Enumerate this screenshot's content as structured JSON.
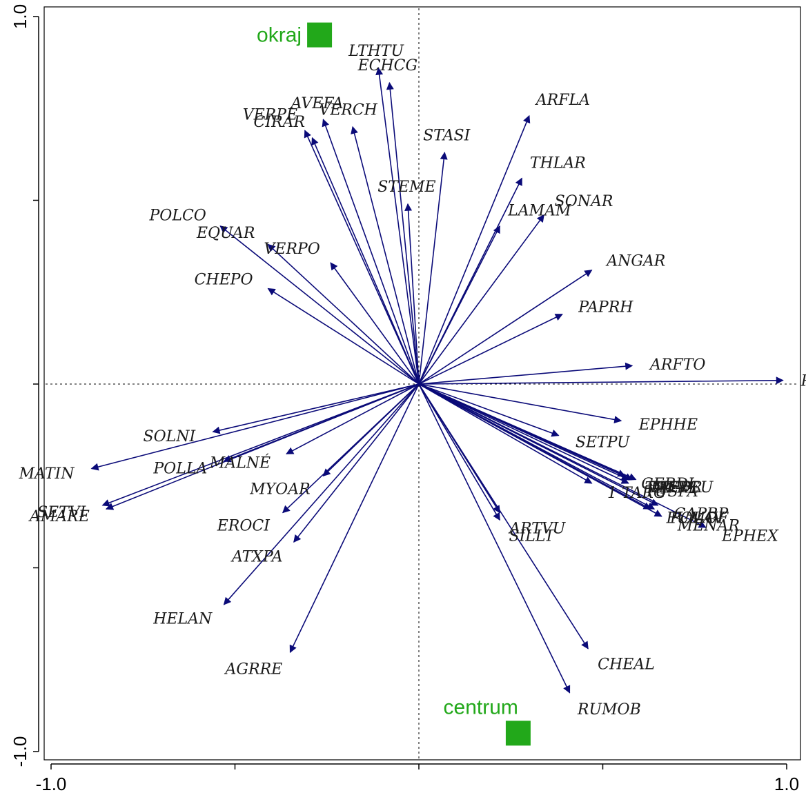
{
  "chart_data": {
    "type": "scatter",
    "subtype": "biplot",
    "xlim": [
      -1.0,
      1.0
    ],
    "ylim": [
      -1.0,
      1.0
    ],
    "xticks": [
      -1.0,
      -0.5,
      0.0,
      0.5,
      1.0
    ],
    "yticks": [
      -1.0,
      -0.5,
      0.0,
      0.5,
      1.0
    ],
    "xtick_labels": [
      "-1.0",
      "",
      "",
      "",
      "1.0"
    ],
    "ytick_labels": [
      "-1.0",
      "",
      "",
      "",
      "1.0"
    ],
    "reference_lines": "dashed at x=0 and y=0",
    "arrow_color": "#0a0a78",
    "sample_color": "#22a81a",
    "arrows": [
      {
        "label": "LTHTU",
        "x": -0.11,
        "y": 0.86
      },
      {
        "label": "ECHCG",
        "x": -0.08,
        "y": 0.82
      },
      {
        "label": "VERCH",
        "x": -0.18,
        "y": 0.7
      },
      {
        "label": "AVEFA",
        "x": -0.26,
        "y": 0.72
      },
      {
        "label": "VERPE",
        "x": -0.31,
        "y": 0.69
      },
      {
        "label": "CIRAR",
        "x": -0.29,
        "y": 0.67
      },
      {
        "label": "STASI",
        "x": 0.07,
        "y": 0.63
      },
      {
        "label": "ARFLA",
        "x": 0.3,
        "y": 0.73
      },
      {
        "label": "STEME",
        "x": -0.03,
        "y": 0.49
      },
      {
        "label": "THLAR",
        "x": 0.28,
        "y": 0.56
      },
      {
        "label": "LAMAM",
        "x": 0.22,
        "y": 0.43
      },
      {
        "label": "SONAR",
        "x": 0.34,
        "y": 0.46
      },
      {
        "label": "POLCO",
        "x": -0.54,
        "y": 0.43
      },
      {
        "label": "EQUAR",
        "x": -0.41,
        "y": 0.38
      },
      {
        "label": "VERPO",
        "x": -0.24,
        "y": 0.33
      },
      {
        "label": "CHEPO",
        "x": -0.41,
        "y": 0.26
      },
      {
        "label": "ANGAR",
        "x": 0.47,
        "y": 0.31
      },
      {
        "label": "PAPRH",
        "x": 0.39,
        "y": 0.19
      },
      {
        "label": "ARFTO",
        "x": 0.58,
        "y": 0.05
      },
      {
        "label": "POLPE",
        "x": 0.99,
        "y": 0.01
      },
      {
        "label": "SOLNI",
        "x": -0.56,
        "y": -0.13
      },
      {
        "label": "MATIN",
        "x": -0.89,
        "y": -0.23
      },
      {
        "label": "SETVI",
        "x": -0.86,
        "y": -0.33
      },
      {
        "label": "AMARE",
        "x": -0.85,
        "y": -0.34
      },
      {
        "label": "POLLA",
        "x": -0.53,
        "y": -0.21
      },
      {
        "label": "MYOAR",
        "x": -0.26,
        "y": -0.25
      },
      {
        "label": "MALNÉ",
        "x": -0.36,
        "y": -0.19
      },
      {
        "label": "EROCI",
        "x": -0.37,
        "y": -0.35
      },
      {
        "label": "ATXPA",
        "x": -0.34,
        "y": -0.43
      },
      {
        "label": "HELAN",
        "x": -0.53,
        "y": -0.6
      },
      {
        "label": "AGRRE",
        "x": -0.35,
        "y": -0.73
      },
      {
        "label": "EPHHE",
        "x": 0.55,
        "y": -0.1
      },
      {
        "label": "SETPU",
        "x": 0.38,
        "y": -0.14
      },
      {
        "label": "GERDI",
        "x": 0.56,
        "y": -0.25
      },
      {
        "label": "TRFPR",
        "x": 0.58,
        "y": -0.26
      },
      {
        "label": "MEDLU",
        "x": 0.59,
        "y": -0.26
      },
      {
        "label": "CAPBP",
        "x": 0.65,
        "y": -0.33
      },
      {
        "label": "TRFRE",
        "x": 0.57,
        "y": -0.26
      },
      {
        "label": "FUMOF",
        "x": 0.63,
        "y": -0.34
      },
      {
        "label": "EPHEX",
        "x": 0.78,
        "y": -0.39
      },
      {
        "label": "1 TARG",
        "x": 0.47,
        "y": -0.27
      },
      {
        "label": "ARTVU",
        "x": 0.22,
        "y": -0.35
      },
      {
        "label": "TUSFA",
        "x": 0.57,
        "y": -0.27
      },
      {
        "label": "POLAV",
        "x": 0.64,
        "y": -0.34
      },
      {
        "label": "MENAR",
        "x": 0.66,
        "y": -0.36
      },
      {
        "label": "SILLT",
        "x": 0.22,
        "y": -0.37
      },
      {
        "label": "CHEAL",
        "x": 0.46,
        "y": -0.72
      },
      {
        "label": "RUMOB",
        "x": 0.41,
        "y": -0.84
      }
    ],
    "samples": [
      {
        "label": "okraj",
        "x": -0.27,
        "y": 0.95
      },
      {
        "label": "centrum",
        "x": 0.27,
        "y": -0.95
      }
    ]
  }
}
